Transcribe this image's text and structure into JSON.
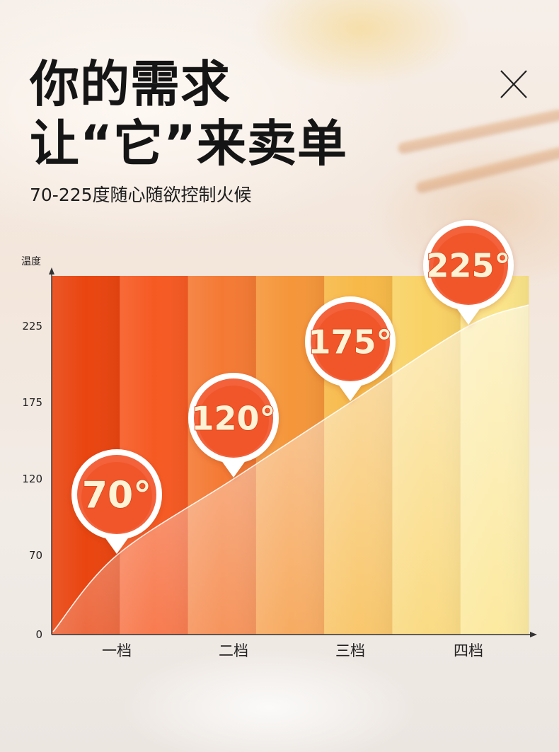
{
  "header": {
    "title_line1": "你的需求",
    "title_line2": "让“它”来卖单",
    "subtitle": "70-225度随心随欲控制火候",
    "close_symbol": "X"
  },
  "colors": {
    "columns": [
      "#e94510",
      "#f65a23",
      "#f47a34",
      "#f5963a",
      "#f7b948",
      "#f9d265",
      "#fbe488"
    ],
    "bubble_outer": "#f3623a",
    "bubble_inner": "#ee4f1e",
    "bubble_text": "#fff3d6"
  },
  "chart_data": {
    "type": "area",
    "ylabel": "温度",
    "xlabel": "",
    "yticks": [
      0,
      70,
      120,
      175,
      225
    ],
    "categories": [
      "一档",
      "二档",
      "三档",
      "四档"
    ],
    "series": [
      {
        "values": [
          70,
          120,
          175,
          225
        ]
      }
    ],
    "point_labels": [
      "70°",
      "120°",
      "175°",
      "225°"
    ],
    "legend": "none",
    "grid": false
  }
}
